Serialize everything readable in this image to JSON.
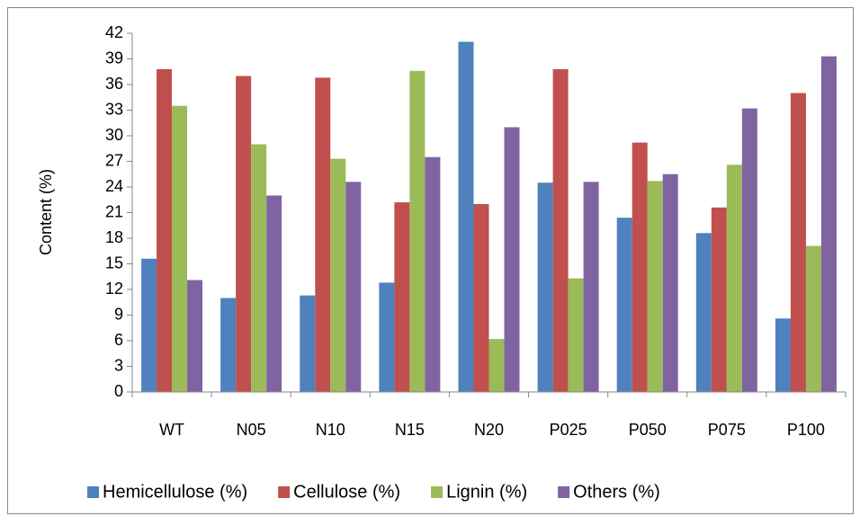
{
  "chart_data": {
    "type": "bar",
    "y_label": "Content (%)",
    "categories": [
      "WT",
      "N05",
      "N10",
      "N15",
      "N20",
      "P025",
      "P050",
      "P075",
      "P100"
    ],
    "series": [
      {
        "name": "Hemicellulose (%)",
        "color": "#4f81bd",
        "values": [
          15.6,
          11.0,
          11.3,
          12.8,
          41.0,
          24.5,
          20.4,
          18.6,
          8.6
        ]
      },
      {
        "name": "Cellulose (%)",
        "color": "#c0504d",
        "values": [
          37.8,
          37.0,
          36.8,
          22.2,
          22.0,
          37.8,
          29.2,
          21.6,
          35.0
        ]
      },
      {
        "name": "Lignin (%)",
        "color": "#9bbb59",
        "values": [
          33.5,
          29.0,
          27.3,
          37.6,
          6.2,
          13.3,
          24.7,
          26.6,
          17.1
        ]
      },
      {
        "name": "Others (%)",
        "color": "#8064a2",
        "values": [
          13.1,
          23.0,
          24.6,
          27.5,
          31.0,
          24.6,
          25.5,
          33.2,
          39.3
        ]
      }
    ],
    "ylim": [
      0,
      42
    ],
    "yticks": [
      0,
      3,
      6,
      9,
      12,
      15,
      18,
      21,
      24,
      27,
      30,
      33,
      36,
      39,
      42
    ],
    "grid": false,
    "legend": "bottom"
  }
}
